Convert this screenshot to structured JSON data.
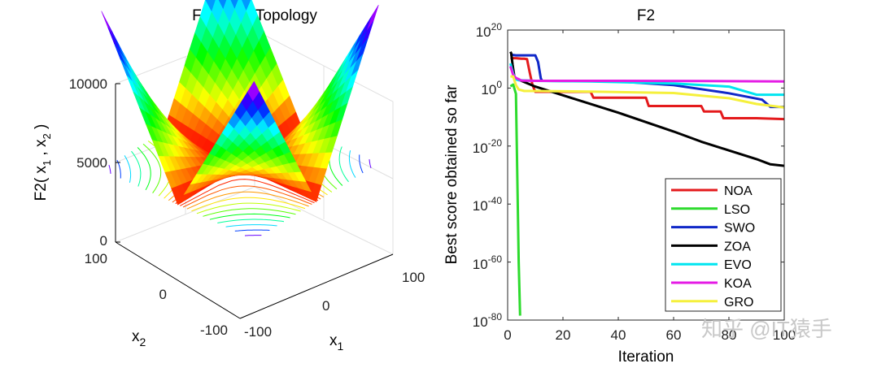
{
  "watermark": "知乎 @IT猿手",
  "chart_data": [
    {
      "type": "surface",
      "title": "Function Topology",
      "zlabel": {
        "main": "F2( x",
        "s1": "1",
        "mid": " , x",
        "s2": "2",
        "end": " )"
      },
      "x1label": {
        "main": "x",
        "sub": "1"
      },
      "x2label": {
        "main": "x",
        "sub": "2"
      },
      "zticks": [
        "10000",
        "5000",
        "0"
      ],
      "x1ticks": [
        "-100",
        "0",
        "100"
      ],
      "x2ticks": [
        "100",
        "0",
        "-100"
      ],
      "xlim": [
        -100,
        100
      ],
      "ylim": [
        -100,
        100
      ],
      "zlim": [
        0,
        10000
      ],
      "colormap": "hsv",
      "contours": true
    },
    {
      "type": "line",
      "title": "F2",
      "xlabel": "Iteration",
      "ylabel": "Best score obtained so far",
      "xlim": [
        0,
        100
      ],
      "ylim": [
        1e-80,
        1e+20
      ],
      "yscale": "log",
      "xticks": [
        "0",
        "20",
        "40",
        "60",
        "80",
        "100"
      ],
      "yticks": [
        {
          "base": "10",
          "exp": "20"
        },
        {
          "base": "10",
          "exp": "0"
        },
        {
          "base": "10",
          "exp": "-20"
        },
        {
          "base": "10",
          "exp": "-40"
        },
        {
          "base": "10",
          "exp": "-60"
        },
        {
          "base": "10",
          "exp": "-80"
        }
      ],
      "legend": "bottom-right",
      "series": [
        {
          "name": "NOA",
          "color": "#e41a1c",
          "x": [
            1,
            2,
            3,
            5,
            6,
            7,
            8,
            9,
            10,
            15,
            30,
            31,
            50,
            51,
            70,
            71,
            77,
            78,
            90,
            100
          ],
          "log10y": [
            10.3,
            10.3,
            10.3,
            10.1,
            10.1,
            10.0,
            5.3,
            1.0,
            -1.3,
            -1.3,
            -1.3,
            -3.3,
            -3.3,
            -6.2,
            -6.2,
            -8.1,
            -8.1,
            -10.4,
            -10.4,
            -10.7
          ]
        },
        {
          "name": "LSO",
          "color": "#2ddb2d",
          "x": [
            1,
            2,
            3,
            4,
            4.5
          ],
          "log10y": [
            0.6,
            1.2,
            -2.0,
            -60.0,
            -78.5
          ]
        },
        {
          "name": "SWO",
          "color": "#1028c8",
          "x": [
            1,
            3,
            10,
            11,
            12,
            12.5,
            13,
            40,
            60,
            80,
            92,
            95,
            100
          ],
          "log10y": [
            11.5,
            11.3,
            11.3,
            9.0,
            3.3,
            2.5,
            2.5,
            2.3,
            1.0,
            -1.8,
            -4.0,
            -6.5,
            -6.5
          ]
        },
        {
          "name": "ZOA",
          "color": "#000000",
          "x": [
            1,
            1.3,
            1.8,
            2.5,
            10,
            20,
            40,
            60,
            70,
            80,
            90,
            95,
            100
          ],
          "log10y": [
            12.5,
            12.0,
            8.0,
            3.5,
            0.5,
            -2.5,
            -8.5,
            -15.0,
            -18.5,
            -21.5,
            -24.5,
            -26.3,
            -26.8
          ]
        },
        {
          "name": "EVO",
          "color": "#00e5f0",
          "x": [
            1,
            2,
            3,
            4,
            10,
            30,
            60,
            80,
            90,
            100
          ],
          "log10y": [
            8.5,
            5.0,
            3.0,
            2.7,
            2.5,
            2.3,
            1.6,
            0.5,
            -2.3,
            -2.3
          ]
        },
        {
          "name": "KOA",
          "color": "#e51be5",
          "x": [
            1,
            2,
            3,
            5,
            10,
            40,
            70,
            100
          ],
          "log10y": [
            7.5,
            4.5,
            3.5,
            2.6,
            2.5,
            2.5,
            2.4,
            2.3
          ]
        },
        {
          "name": "GRO",
          "color": "#f5f03c",
          "x": [
            1,
            2,
            3,
            4,
            6,
            10,
            30,
            60,
            80,
            90,
            100
          ],
          "log10y": [
            4.0,
            4.0,
            1.0,
            -0.5,
            -1.0,
            -1.0,
            -1.2,
            -1.7,
            -3.5,
            -5.5,
            -6.7
          ]
        }
      ]
    }
  ]
}
